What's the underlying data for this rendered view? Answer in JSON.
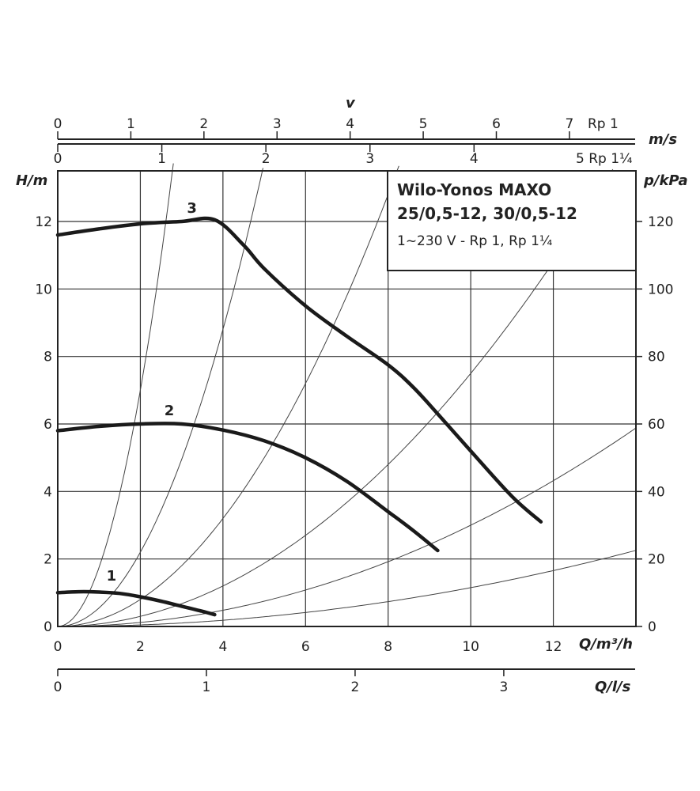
{
  "chart_data": {
    "type": "line",
    "title": "Wilo-Yonos MAXO",
    "subtitle": "25/0,5-12, 30/0,5-12",
    "note": "1~230 V - Rp 1, Rp 1¼",
    "xlabel": "Q/m³/h",
    "ylabel": "H/m",
    "y2label": "p/kPa",
    "xlim": [
      0,
      14
    ],
    "ylim": [
      0,
      13.5
    ],
    "y2lim": [
      0,
      135
    ],
    "grid": true,
    "x_ticks": [
      "0",
      "2",
      "4",
      "6",
      "8",
      "10",
      "12"
    ],
    "y_ticks": [
      "0",
      "2",
      "4",
      "6",
      "8",
      "10",
      "12"
    ],
    "y2_ticks": [
      "0",
      "20",
      "40",
      "60",
      "80",
      "100",
      "120"
    ],
    "top_axes": [
      {
        "label": "v",
        "unit": "m/s",
        "ticks": [
          "0",
          "1",
          "2",
          "3",
          "4",
          "5",
          "6",
          "7"
        ],
        "end_label": "Rp 1",
        "q_per_unit": 1.77
      },
      {
        "label": "",
        "unit": "",
        "ticks": [
          "0",
          "1",
          "2",
          "3",
          "4"
        ],
        "end_label": "5 Rp 1¼",
        "q_per_unit": 2.52
      }
    ],
    "bottom_axis": {
      "label": "Q/l/s",
      "ticks": [
        "0",
        "1",
        "2",
        "3"
      ],
      "q_per_unit": 3.6
    },
    "series": [
      {
        "name": "1",
        "points": [
          [
            0,
            1.0
          ],
          [
            0.5,
            1.03
          ],
          [
            1.0,
            1.02
          ],
          [
            1.5,
            0.98
          ],
          [
            2.0,
            0.88
          ],
          [
            2.5,
            0.75
          ],
          [
            3.0,
            0.6
          ],
          [
            3.5,
            0.45
          ],
          [
            3.8,
            0.35
          ]
        ]
      },
      {
        "name": "2",
        "points": [
          [
            0,
            5.8
          ],
          [
            1.0,
            5.93
          ],
          [
            2.0,
            6.0
          ],
          [
            3.0,
            6.0
          ],
          [
            4.0,
            5.82
          ],
          [
            5.0,
            5.5
          ],
          [
            6.0,
            5.0
          ],
          [
            7.0,
            4.3
          ],
          [
            8.0,
            3.4
          ],
          [
            8.6,
            2.85
          ],
          [
            9.2,
            2.25
          ]
        ]
      },
      {
        "name": "3",
        "points": [
          [
            0,
            11.6
          ],
          [
            1.0,
            11.78
          ],
          [
            2.0,
            11.93
          ],
          [
            3.0,
            12.0
          ],
          [
            3.8,
            12.05
          ],
          [
            4.5,
            11.3
          ],
          [
            5.0,
            10.6
          ],
          [
            6.0,
            9.5
          ],
          [
            7.0,
            8.6
          ],
          [
            8.0,
            7.75
          ],
          [
            8.6,
            7.1
          ],
          [
            9.2,
            6.3
          ],
          [
            10.0,
            5.2
          ],
          [
            11.0,
            3.85
          ],
          [
            11.7,
            3.1
          ]
        ]
      }
    ],
    "system_curves": [
      1.75,
      0.55,
      0.2,
      0.075,
      0.03,
      0.0115
    ]
  }
}
